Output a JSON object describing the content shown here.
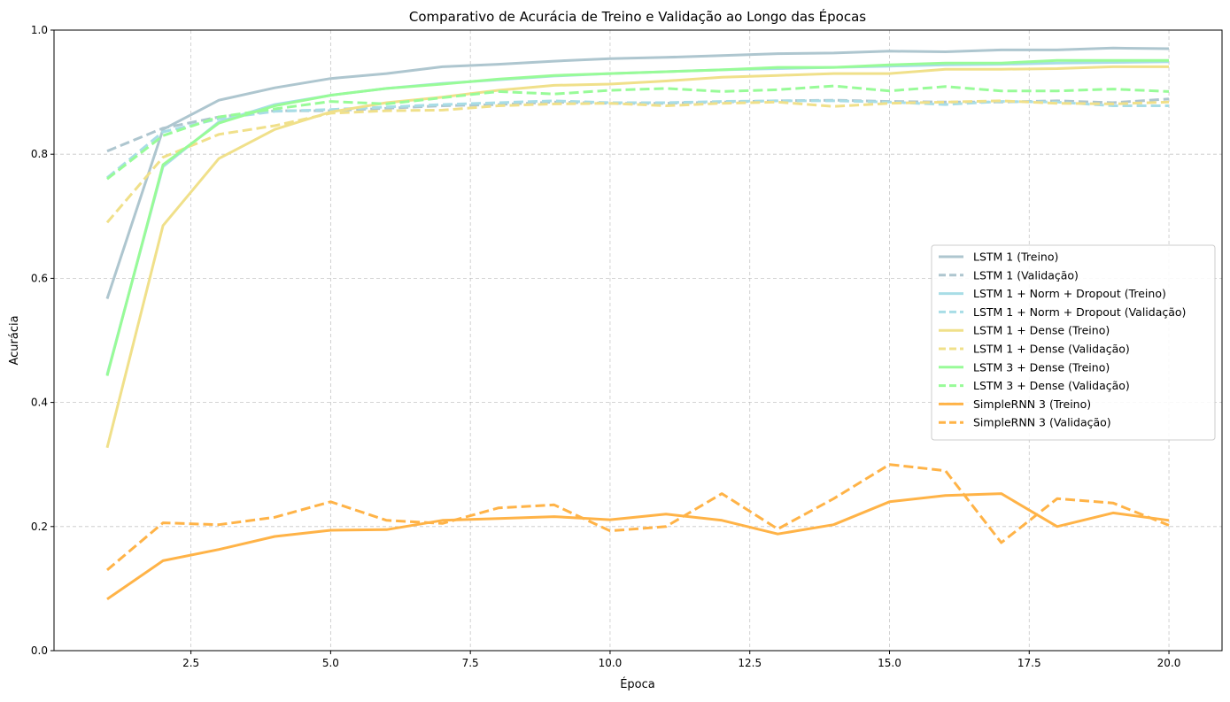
{
  "chart_data": {
    "type": "line",
    "title": "Comparativo de Acurácia de Treino e Validação ao Longo das Épocas",
    "xlabel": "Época",
    "ylabel": "Acurácia",
    "xlim": [
      0.05,
      20.95
    ],
    "ylim": [
      0,
      1.0
    ],
    "xticks": [
      2.5,
      5.0,
      7.5,
      10.0,
      12.5,
      15.0,
      17.5,
      20.0
    ],
    "xtick_labels": [
      "2.5",
      "5.0",
      "7.5",
      "10.0",
      "12.5",
      "15.0",
      "17.5",
      "20.0"
    ],
    "yticks": [
      0.0,
      0.2,
      0.4,
      0.6,
      0.8,
      1.0
    ],
    "ytick_labels": [
      "0.0",
      "0.2",
      "0.4",
      "0.6",
      "0.8",
      "1.0"
    ],
    "grid": true,
    "legend_position": "center-right",
    "x": [
      1,
      2,
      3,
      4,
      5,
      6,
      7,
      8,
      9,
      10,
      11,
      12,
      13,
      14,
      15,
      16,
      17,
      18,
      19,
      20
    ],
    "series": [
      {
        "name": "LSTM 1 (Treino)",
        "color": "#aec6cf",
        "style": "solid",
        "values": [
          0.567,
          0.84,
          0.887,
          0.907,
          0.922,
          0.93,
          0.941,
          0.945,
          0.95,
          0.954,
          0.956,
          0.959,
          0.962,
          0.963,
          0.966,
          0.965,
          0.968,
          0.968,
          0.971,
          0.97
        ]
      },
      {
        "name": "LSTM 1 (Validação)",
        "color": "#aec6cf",
        "style": "dashed",
        "values": [
          0.805,
          0.842,
          0.86,
          0.87,
          0.87,
          0.874,
          0.878,
          0.88,
          0.884,
          0.882,
          0.882,
          0.884,
          0.886,
          0.887,
          0.885,
          0.884,
          0.884,
          0.886,
          0.883,
          0.889
        ]
      },
      {
        "name": "LSTM 1 + Norm + Dropout (Treino)",
        "color": "#a8dde6",
        "style": "solid",
        "values": [
          0.445,
          0.78,
          0.852,
          0.88,
          0.895,
          0.906,
          0.914,
          0.92,
          0.926,
          0.93,
          0.933,
          0.936,
          0.938,
          0.94,
          0.942,
          0.944,
          0.945,
          0.947,
          0.948,
          0.949
        ]
      },
      {
        "name": "LSTM 1 + Norm + Dropout (Validação)",
        "color": "#a8dde6",
        "style": "dashed",
        "values": [
          0.762,
          0.836,
          0.857,
          0.869,
          0.872,
          0.876,
          0.88,
          0.883,
          0.886,
          0.883,
          0.883,
          0.885,
          0.886,
          0.886,
          0.884,
          0.88,
          0.885,
          0.884,
          0.878,
          0.878
        ]
      },
      {
        "name": "LSTM 1 + Dense (Treino)",
        "color": "#f0e08a",
        "style": "solid",
        "values": [
          0.327,
          0.685,
          0.793,
          0.84,
          0.868,
          0.883,
          0.892,
          0.903,
          0.911,
          0.913,
          0.918,
          0.924,
          0.927,
          0.93,
          0.93,
          0.937,
          0.937,
          0.938,
          0.941,
          0.941
        ]
      },
      {
        "name": "LSTM 1 + Dense (Validação)",
        "color": "#f0e08a",
        "style": "dashed",
        "values": [
          0.69,
          0.795,
          0.832,
          0.846,
          0.866,
          0.87,
          0.871,
          0.878,
          0.881,
          0.882,
          0.878,
          0.882,
          0.884,
          0.877,
          0.882,
          0.884,
          0.886,
          0.882,
          0.881,
          0.884
        ]
      },
      {
        "name": "LSTM 3 + Dense (Treino)",
        "color": "#98fb98",
        "style": "solid",
        "values": [
          0.443,
          0.783,
          0.85,
          0.878,
          0.895,
          0.906,
          0.913,
          0.921,
          0.927,
          0.93,
          0.933,
          0.936,
          0.94,
          0.94,
          0.944,
          0.947,
          0.947,
          0.951,
          0.951,
          0.951
        ]
      },
      {
        "name": "LSTM 3 + Dense (Validação)",
        "color": "#98fb98",
        "style": "dashed",
        "values": [
          0.76,
          0.83,
          0.86,
          0.873,
          0.885,
          0.881,
          0.891,
          0.901,
          0.897,
          0.903,
          0.906,
          0.901,
          0.904,
          0.91,
          0.902,
          0.909,
          0.902,
          0.902,
          0.905,
          0.901
        ]
      },
      {
        "name": "SimpleRNN 3 (Treino)",
        "color": "#ffb347",
        "style": "solid",
        "values": [
          0.083,
          0.145,
          0.163,
          0.184,
          0.194,
          0.195,
          0.21,
          0.213,
          0.216,
          0.211,
          0.22,
          0.21,
          0.188,
          0.203,
          0.24,
          0.25,
          0.253,
          0.2,
          0.222,
          0.21
        ]
      },
      {
        "name": "SimpleRNN 3 (Validação)",
        "color": "#ffb347",
        "style": "dashed",
        "values": [
          0.13,
          0.206,
          0.203,
          0.215,
          0.24,
          0.21,
          0.205,
          0.23,
          0.235,
          0.193,
          0.2,
          0.253,
          0.196,
          0.245,
          0.3,
          0.29,
          0.174,
          0.245,
          0.238,
          0.202
        ]
      }
    ]
  }
}
